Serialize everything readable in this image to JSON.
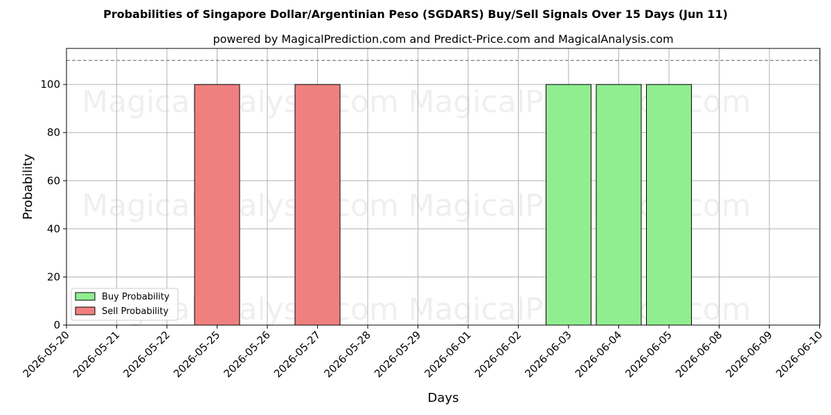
{
  "chart_data": {
    "type": "bar",
    "title": "Probabilities of Singapore Dollar/Argentinian Peso (SGDARS) Buy/Sell Signals Over 15 Days (Jun 11)",
    "subtitle": "powered by MagicalPrediction.com and Predict-Price.com and MagicalAnalysis.com",
    "xlabel": "Days",
    "ylabel": "Probability",
    "categories": [
      "2026-05-20",
      "2026-05-21",
      "2026-05-22",
      "2026-05-25",
      "2026-05-26",
      "2026-05-27",
      "2026-05-28",
      "2026-05-29",
      "2026-06-01",
      "2026-06-02",
      "2026-06-03",
      "2026-06-04",
      "2026-06-05",
      "2026-06-08",
      "2026-06-09",
      "2026-06-10"
    ],
    "yticks": [
      0,
      20,
      40,
      60,
      80,
      100
    ],
    "ylim": [
      0,
      115
    ],
    "reference_line": 110,
    "grid": true,
    "legend_position": "lower-left",
    "series": [
      {
        "name": "Buy Probability",
        "color": "#90ee90",
        "values": [
          0,
          0,
          0,
          0,
          0,
          0,
          0,
          0,
          0,
          0,
          100,
          100,
          100,
          0,
          0,
          0
        ]
      },
      {
        "name": "Sell Probability",
        "color": "#f08080",
        "values": [
          0,
          0,
          0,
          100,
          0,
          100,
          0,
          0,
          0,
          0,
          0,
          0,
          0,
          0,
          0,
          0
        ]
      }
    ],
    "watermarks": [
      "MagicalAnalysis.com",
      "MagicalPrediction.com"
    ]
  }
}
